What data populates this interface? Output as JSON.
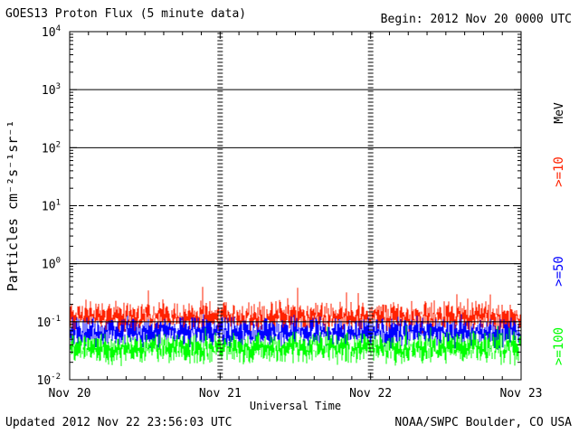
{
  "header": {
    "title": "GOES13 Proton Flux (5 minute data)",
    "begin": "Begin: 2012 Nov 20 0000 UTC"
  },
  "footer": {
    "updated": "Updated 2012 Nov 22 23:56:03 UTC",
    "credit": "NOAA/SWPC Boulder, CO USA"
  },
  "chart_data": {
    "type": "line",
    "title": "GOES13 Proton Flux (5 minute data)",
    "xlabel": "Universal Time",
    "ylabel": "Particles cm⁻²s⁻¹sr⁻¹",
    "yscale": "log",
    "ylim": [
      0.01,
      10000
    ],
    "xlim": [
      "2012-11-20 00:00",
      "2012-11-23 00:00"
    ],
    "x_ticks": [
      "Nov 20",
      "Nov 21",
      "Nov 22",
      "Nov 23"
    ],
    "y_ticks": [
      {
        "base": "10",
        "exp": "-2"
      },
      {
        "base": "10",
        "exp": "-1"
      },
      {
        "base": "10",
        "exp": "0"
      },
      {
        "base": "10",
        "exp": "1"
      },
      {
        "base": "10",
        "exp": "2"
      },
      {
        "base": "10",
        "exp": "3"
      },
      {
        "base": "10",
        "exp": "4"
      }
    ],
    "reference_lines": [
      {
        "value": 0.1,
        "style": "solid"
      },
      {
        "value": 1,
        "style": "solid"
      },
      {
        "value": 10,
        "style": "dashed"
      },
      {
        "value": 100,
        "style": "solid"
      },
      {
        "value": 1000,
        "style": "solid"
      }
    ],
    "unit_label": "MeV",
    "series": [
      {
        "name": ">=10",
        "color": "#ff2200",
        "typical": 0.12,
        "spike_max": 0.42
      },
      {
        "name": ">=50",
        "color": "#0000ff",
        "typical": 0.065,
        "spike_max": 0.14
      },
      {
        "name": ">=100",
        "color": "#00ff00",
        "typical": 0.035,
        "spike_max": 0.09
      }
    ]
  }
}
